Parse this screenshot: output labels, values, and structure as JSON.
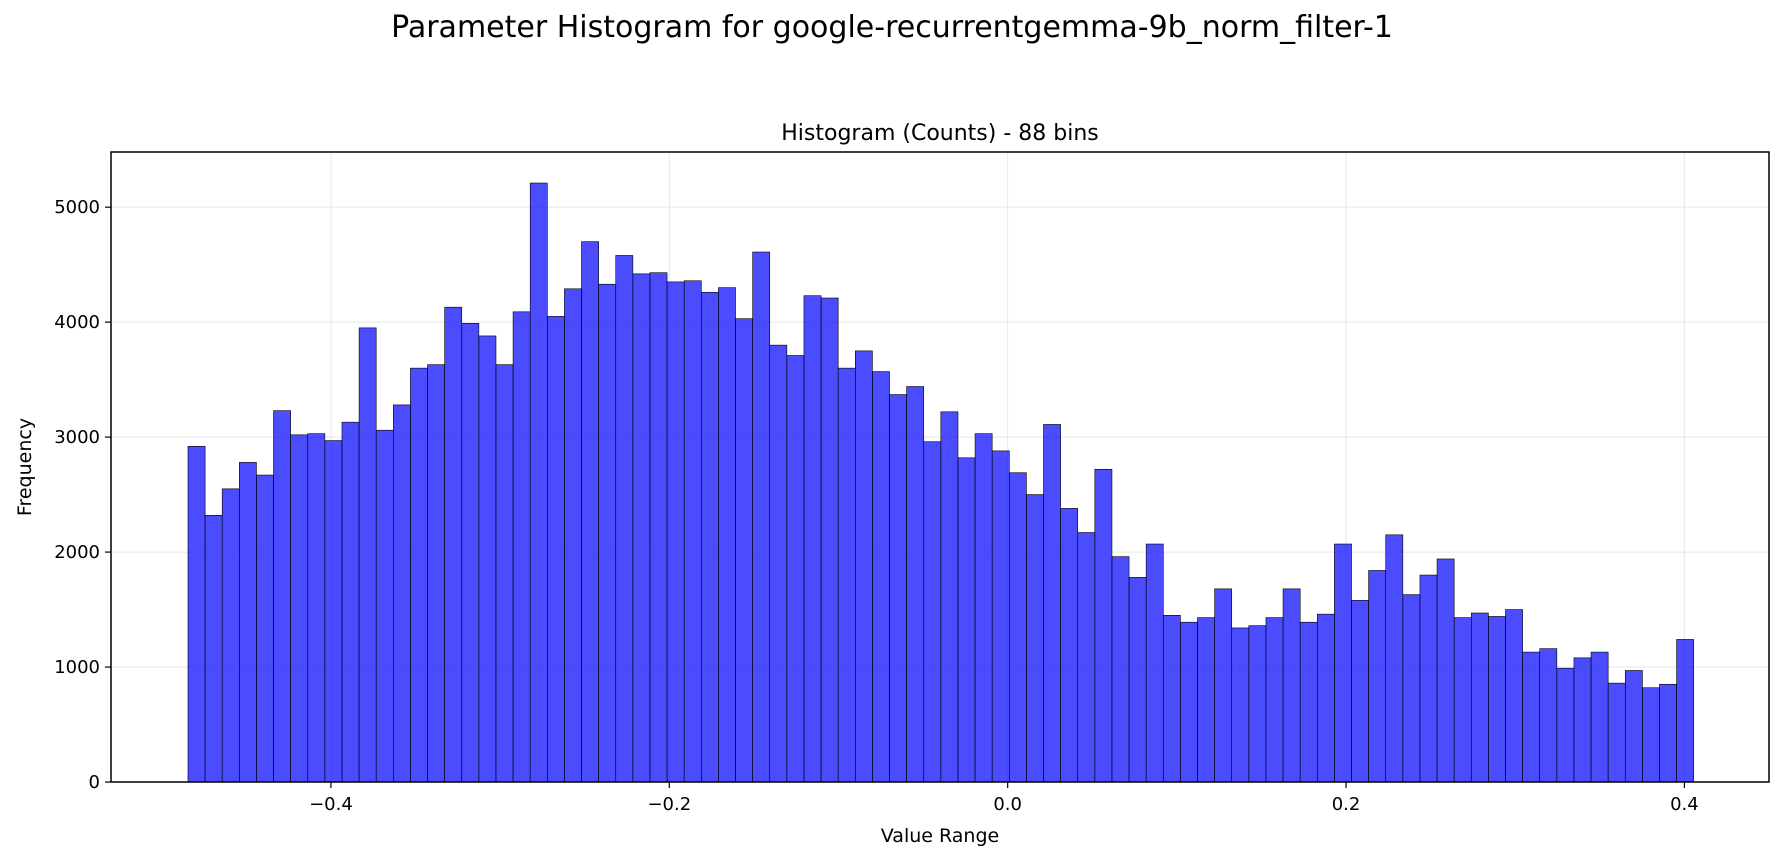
{
  "suptitle": "Parameter Histogram for google-recurrentgemma-9b_norm_filter-1",
  "chart_data": {
    "type": "bar",
    "title": "Histogram (Counts) - 88 bins",
    "xlabel": "Value Range",
    "ylabel": "Frequency",
    "bins": 88,
    "x_start": -0.4845,
    "x_end": 0.4055,
    "xlim": [
      -0.53,
      0.45
    ],
    "ylim": [
      0,
      5480
    ],
    "xticks": [
      -0.4,
      -0.2,
      0.0,
      0.2,
      0.4
    ],
    "xtick_labels": [
      "−0.4",
      "−0.2",
      "0.0",
      "0.2",
      "0.4"
    ],
    "yticks": [
      0,
      1000,
      2000,
      3000,
      4000,
      5000
    ],
    "ytick_labels": [
      "0",
      "1000",
      "2000",
      "3000",
      "4000",
      "5000"
    ],
    "grid": true,
    "bar_color": "#0000ff",
    "bar_opacity": 0.7,
    "edge_color": "#000000",
    "values": [
      2920,
      2320,
      2550,
      2780,
      2670,
      3230,
      3020,
      3030,
      2970,
      3130,
      3950,
      3060,
      3280,
      3600,
      3630,
      4130,
      3990,
      3880,
      3630,
      4090,
      5210,
      4050,
      4290,
      4700,
      4330,
      4580,
      4420,
      4430,
      4350,
      4360,
      4260,
      4300,
      4030,
      4610,
      3800,
      3710,
      4230,
      4210,
      3600,
      3750,
      3570,
      3370,
      3440,
      2960,
      3220,
      2820,
      3030,
      2880,
      2690,
      2500,
      3110,
      2380,
      2170,
      2720,
      1960,
      1780,
      2070,
      1450,
      1390,
      1430,
      1680,
      1340,
      1360,
      1430,
      1680,
      1390,
      1460,
      2070,
      1580,
      1840,
      2150,
      1630,
      1800,
      1940,
      1430,
      1470,
      1440,
      1500,
      1130,
      1160,
      990,
      1080,
      1130,
      860,
      970,
      820,
      850,
      1240
    ]
  }
}
